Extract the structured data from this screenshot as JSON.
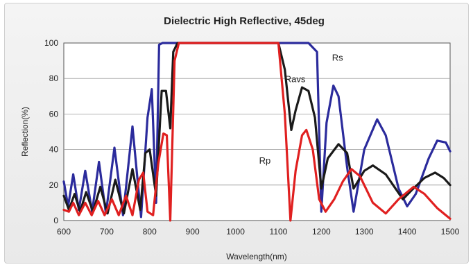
{
  "chart_data": {
    "type": "line",
    "title": "Dielectric High Reflective, 45deg",
    "xlabel": "Wavelength(nm)",
    "ylabel": "Reflection(%)",
    "xlim": [
      600,
      1500
    ],
    "ylim": [
      0,
      100
    ],
    "x_ticks": [
      "600",
      "700",
      "800",
      "900",
      "1000",
      "1100",
      "1200",
      "1300",
      "1400",
      "1500"
    ],
    "y_ticks": [
      "0",
      "20",
      "40",
      "60",
      "80",
      "100"
    ],
    "grid": "horizontal",
    "series": [
      {
        "name": "Rs",
        "color": "#2b2b9c",
        "points": [
          [
            600,
            22
          ],
          [
            610,
            8
          ],
          [
            622,
            26
          ],
          [
            635,
            6
          ],
          [
            650,
            28
          ],
          [
            666,
            5
          ],
          [
            682,
            33
          ],
          [
            698,
            4
          ],
          [
            718,
            41
          ],
          [
            738,
            3
          ],
          [
            760,
            53
          ],
          [
            780,
            2
          ],
          [
            795,
            58
          ],
          [
            805,
            74
          ],
          [
            815,
            10
          ],
          [
            822,
            99
          ],
          [
            830,
            100
          ],
          [
            1170,
            100
          ],
          [
            1190,
            95
          ],
          [
            1200,
            5
          ],
          [
            1212,
            55
          ],
          [
            1228,
            76
          ],
          [
            1240,
            70
          ],
          [
            1260,
            30
          ],
          [
            1275,
            5
          ],
          [
            1300,
            40
          ],
          [
            1330,
            57
          ],
          [
            1350,
            48
          ],
          [
            1380,
            18
          ],
          [
            1400,
            8
          ],
          [
            1420,
            15
          ],
          [
            1450,
            35
          ],
          [
            1470,
            45
          ],
          [
            1490,
            44
          ],
          [
            1500,
            39
          ]
        ]
      },
      {
        "name": "Ravs",
        "color": "#1a1a1a",
        "points": [
          [
            600,
            14
          ],
          [
            612,
            6
          ],
          [
            625,
            15
          ],
          [
            638,
            5
          ],
          [
            652,
            16
          ],
          [
            668,
            5
          ],
          [
            685,
            19
          ],
          [
            702,
            4
          ],
          [
            720,
            23
          ],
          [
            740,
            4
          ],
          [
            760,
            29
          ],
          [
            778,
            6
          ],
          [
            790,
            38
          ],
          [
            800,
            40
          ],
          [
            815,
            14
          ],
          [
            828,
            73
          ],
          [
            838,
            73
          ],
          [
            848,
            52
          ],
          [
            855,
            95
          ],
          [
            865,
            100
          ],
          [
            1100,
            100
          ],
          [
            1115,
            85
          ],
          [
            1130,
            51
          ],
          [
            1140,
            62
          ],
          [
            1155,
            75
          ],
          [
            1170,
            73
          ],
          [
            1185,
            58
          ],
          [
            1200,
            18
          ],
          [
            1215,
            35
          ],
          [
            1240,
            43
          ],
          [
            1260,
            38
          ],
          [
            1275,
            18
          ],
          [
            1300,
            28
          ],
          [
            1320,
            31
          ],
          [
            1350,
            26
          ],
          [
            1390,
            12
          ],
          [
            1410,
            17
          ],
          [
            1440,
            24
          ],
          [
            1465,
            27
          ],
          [
            1485,
            24
          ],
          [
            1500,
            20
          ]
        ]
      },
      {
        "name": "Rp",
        "color": "#e02020",
        "points": [
          [
            600,
            6
          ],
          [
            612,
            5
          ],
          [
            622,
            10
          ],
          [
            635,
            3
          ],
          [
            650,
            10
          ],
          [
            665,
            3
          ],
          [
            680,
            11
          ],
          [
            695,
            3
          ],
          [
            712,
            12
          ],
          [
            728,
            3
          ],
          [
            745,
            14
          ],
          [
            760,
            3
          ],
          [
            775,
            23
          ],
          [
            785,
            27
          ],
          [
            795,
            5
          ],
          [
            808,
            3
          ],
          [
            820,
            32
          ],
          [
            832,
            49
          ],
          [
            840,
            48
          ],
          [
            848,
            0
          ],
          [
            858,
            90
          ],
          [
            868,
            100
          ],
          [
            1100,
            100
          ],
          [
            1115,
            60
          ],
          [
            1128,
            0
          ],
          [
            1140,
            28
          ],
          [
            1155,
            48
          ],
          [
            1165,
            51
          ],
          [
            1180,
            40
          ],
          [
            1195,
            12
          ],
          [
            1210,
            5
          ],
          [
            1230,
            12
          ],
          [
            1250,
            22
          ],
          [
            1270,
            29
          ],
          [
            1290,
            25
          ],
          [
            1320,
            10
          ],
          [
            1350,
            4
          ],
          [
            1380,
            12
          ],
          [
            1415,
            19
          ],
          [
            1440,
            15
          ],
          [
            1470,
            7
          ],
          [
            1500,
            1
          ]
        ]
      }
    ]
  }
}
